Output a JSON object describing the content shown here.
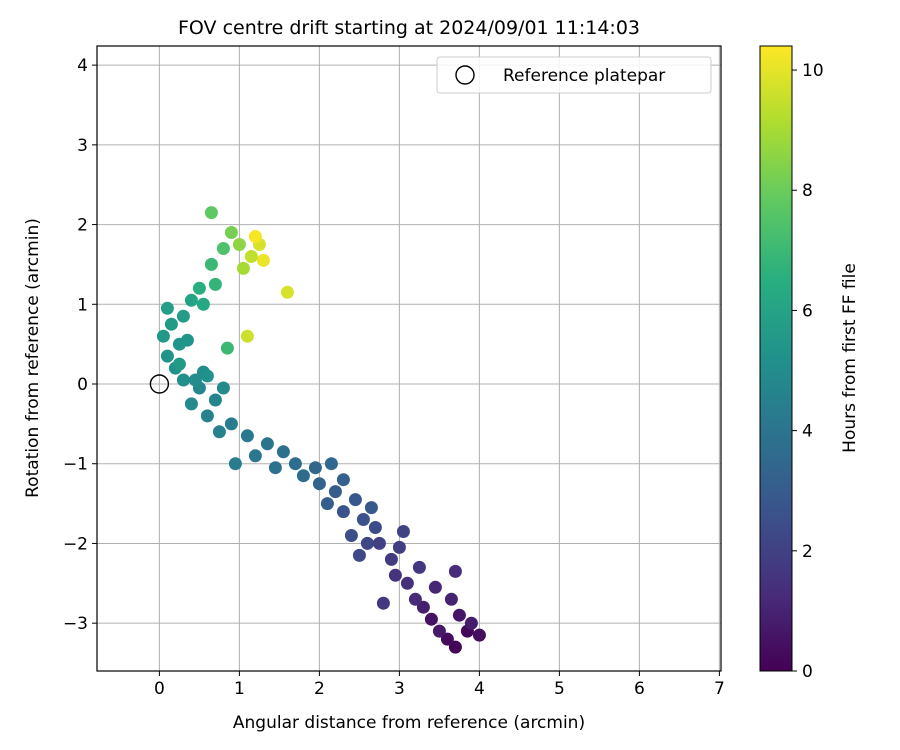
{
  "chart_data": {
    "type": "scatter",
    "title": "FOV centre drift starting at 2024/09/01 11:14:03",
    "xlabel": "Angular distance from reference (arcmin)",
    "ylabel": "Rotation from reference (arcmin)",
    "xlim": [
      -0.78,
      7.02
    ],
    "ylim": [
      -3.6,
      4.24
    ],
    "x_ticks": [
      0,
      1,
      2,
      3,
      4,
      5,
      6,
      7
    ],
    "y_ticks": [
      -3,
      -2,
      -1,
      0,
      1,
      2,
      3,
      4
    ],
    "grid": true,
    "legend": {
      "location": "top-right",
      "entries": [
        "Reference platepar"
      ]
    },
    "reference_point": {
      "name": "Reference platepar",
      "x": 0,
      "y": 0
    },
    "colorbar": {
      "label": "Hours from first FF file",
      "colormap": "viridis",
      "range": [
        0,
        10.4
      ],
      "ticks": [
        0,
        2,
        4,
        6,
        8,
        10
      ]
    },
    "series": [
      {
        "name": "",
        "color_by": "hours",
        "points": [
          [
            3.7,
            -3.3,
            0.1
          ],
          [
            3.85,
            -3.1,
            0.2
          ],
          [
            3.6,
            -3.2,
            0.3
          ],
          [
            4.0,
            -3.15,
            0.4
          ],
          [
            3.4,
            -2.95,
            0.5
          ],
          [
            3.75,
            -2.9,
            0.6
          ],
          [
            3.5,
            -3.1,
            0.7
          ],
          [
            3.9,
            -3.0,
            0.8
          ],
          [
            3.3,
            -2.8,
            0.9
          ],
          [
            3.65,
            -2.7,
            1.0
          ],
          [
            3.45,
            -2.55,
            1.1
          ],
          [
            3.2,
            -2.7,
            1.2
          ],
          [
            3.7,
            -2.35,
            1.3
          ],
          [
            3.1,
            -2.5,
            1.4
          ],
          [
            2.95,
            -2.4,
            1.5
          ],
          [
            3.25,
            -2.3,
            1.6
          ],
          [
            2.8,
            -2.75,
            1.7
          ],
          [
            2.9,
            -2.2,
            1.8
          ],
          [
            3.0,
            -2.05,
            1.9
          ],
          [
            2.75,
            -2.0,
            2.0
          ],
          [
            3.05,
            -1.85,
            2.1
          ],
          [
            2.6,
            -2.0,
            2.2
          ],
          [
            2.5,
            -2.15,
            2.3
          ],
          [
            2.7,
            -1.8,
            2.4
          ],
          [
            2.4,
            -1.9,
            2.5
          ],
          [
            2.55,
            -1.7,
            2.6
          ],
          [
            2.3,
            -1.6,
            2.7
          ],
          [
            2.45,
            -1.45,
            2.8
          ],
          [
            2.65,
            -1.55,
            2.9
          ],
          [
            2.2,
            -1.35,
            3.0
          ],
          [
            2.1,
            -1.5,
            3.1
          ],
          [
            2.3,
            -1.2,
            3.2
          ],
          [
            2.0,
            -1.25,
            3.3
          ],
          [
            1.95,
            -1.05,
            3.4
          ],
          [
            2.15,
            -1.0,
            3.5
          ],
          [
            1.8,
            -1.15,
            3.6
          ],
          [
            1.7,
            -1.0,
            3.7
          ],
          [
            1.55,
            -0.85,
            3.8
          ],
          [
            1.45,
            -1.05,
            3.9
          ],
          [
            1.35,
            -0.75,
            4.0
          ],
          [
            1.2,
            -0.9,
            4.1
          ],
          [
            1.1,
            -0.65,
            4.2
          ],
          [
            0.95,
            -1.0,
            4.3
          ],
          [
            0.9,
            -0.5,
            4.4
          ],
          [
            0.75,
            -0.6,
            4.5
          ],
          [
            0.6,
            -0.4,
            4.6
          ],
          [
            0.7,
            -0.2,
            4.7
          ],
          [
            0.5,
            -0.05,
            4.8
          ],
          [
            0.4,
            -0.25,
            4.9
          ],
          [
            0.55,
            0.15,
            5.0
          ],
          [
            0.3,
            0.05,
            5.1
          ],
          [
            0.2,
            0.2,
            5.2
          ],
          [
            0.1,
            0.35,
            5.3
          ],
          [
            0.25,
            0.5,
            5.4
          ],
          [
            0.05,
            0.6,
            5.5
          ],
          [
            0.15,
            0.75,
            5.6
          ],
          [
            0.3,
            0.85,
            5.7
          ],
          [
            0.1,
            0.95,
            5.8
          ],
          [
            0.4,
            1.05,
            6.0
          ],
          [
            0.55,
            1.0,
            6.2
          ],
          [
            0.5,
            1.2,
            6.5
          ],
          [
            0.7,
            1.25,
            6.8
          ],
          [
            0.65,
            1.5,
            7.0
          ],
          [
            0.8,
            1.7,
            7.4
          ],
          [
            0.65,
            2.15,
            7.8
          ],
          [
            0.9,
            1.9,
            8.2
          ],
          [
            1.0,
            1.75,
            8.6
          ],
          [
            1.05,
            1.45,
            9.0
          ],
          [
            1.15,
            1.6,
            9.4
          ],
          [
            1.25,
            1.75,
            9.8
          ],
          [
            1.3,
            1.55,
            10.1
          ],
          [
            1.2,
            1.85,
            10.3
          ],
          [
            1.1,
            0.6,
            9.6
          ],
          [
            1.6,
            1.15,
            9.8
          ],
          [
            0.85,
            0.45,
            7.0
          ],
          [
            0.25,
            0.25,
            5.6
          ],
          [
            0.35,
            0.55,
            5.4
          ],
          [
            0.45,
            0.05,
            5.0
          ],
          [
            0.6,
            0.1,
            5.2
          ],
          [
            0.8,
            -0.05,
            4.9
          ]
        ]
      }
    ]
  }
}
